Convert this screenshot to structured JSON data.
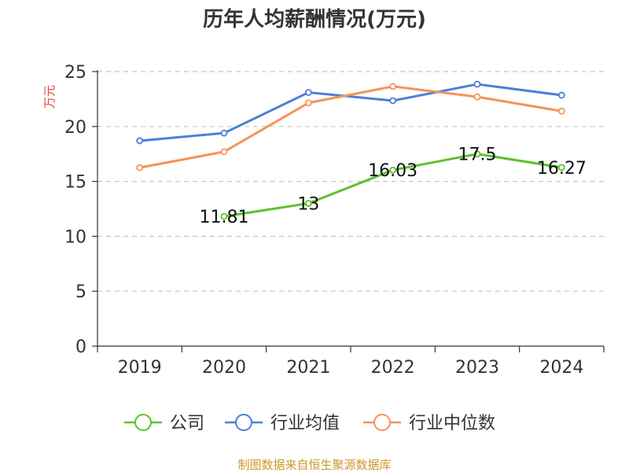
{
  "chart_data": {
    "type": "line",
    "title": "历年人均薪酬情况(万元)",
    "ylabel": "万元",
    "xlabel": "",
    "categories": [
      "2019",
      "2020",
      "2021",
      "2022",
      "2023",
      "2024"
    ],
    "ylim": [
      0,
      25
    ],
    "yticks": [
      0,
      5,
      10,
      15,
      20,
      25
    ],
    "grid": true,
    "legend_position": "bottom",
    "series": [
      {
        "name": "公司",
        "color": "#5cc12c",
        "values": [
          null,
          11.81,
          13,
          16.03,
          17.5,
          16.27
        ],
        "labels": [
          "",
          "11.81",
          "13",
          "16.03",
          "17.5",
          "16.27"
        ]
      },
      {
        "name": "行业均值",
        "color": "#4a7fd9",
        "values": [
          18.7,
          19.4,
          23.1,
          22.35,
          23.85,
          22.85
        ]
      },
      {
        "name": "行业中位数",
        "color": "#f7925a",
        "values": [
          16.25,
          17.7,
          22.15,
          23.65,
          22.7,
          21.4
        ]
      }
    ]
  },
  "source_text": "制图数据来自恒生聚源数据库",
  "colors": {
    "unit_label": "#e0463c",
    "source": "#c89a2b",
    "grid": "#c8c8c8",
    "axis": "#333333"
  }
}
